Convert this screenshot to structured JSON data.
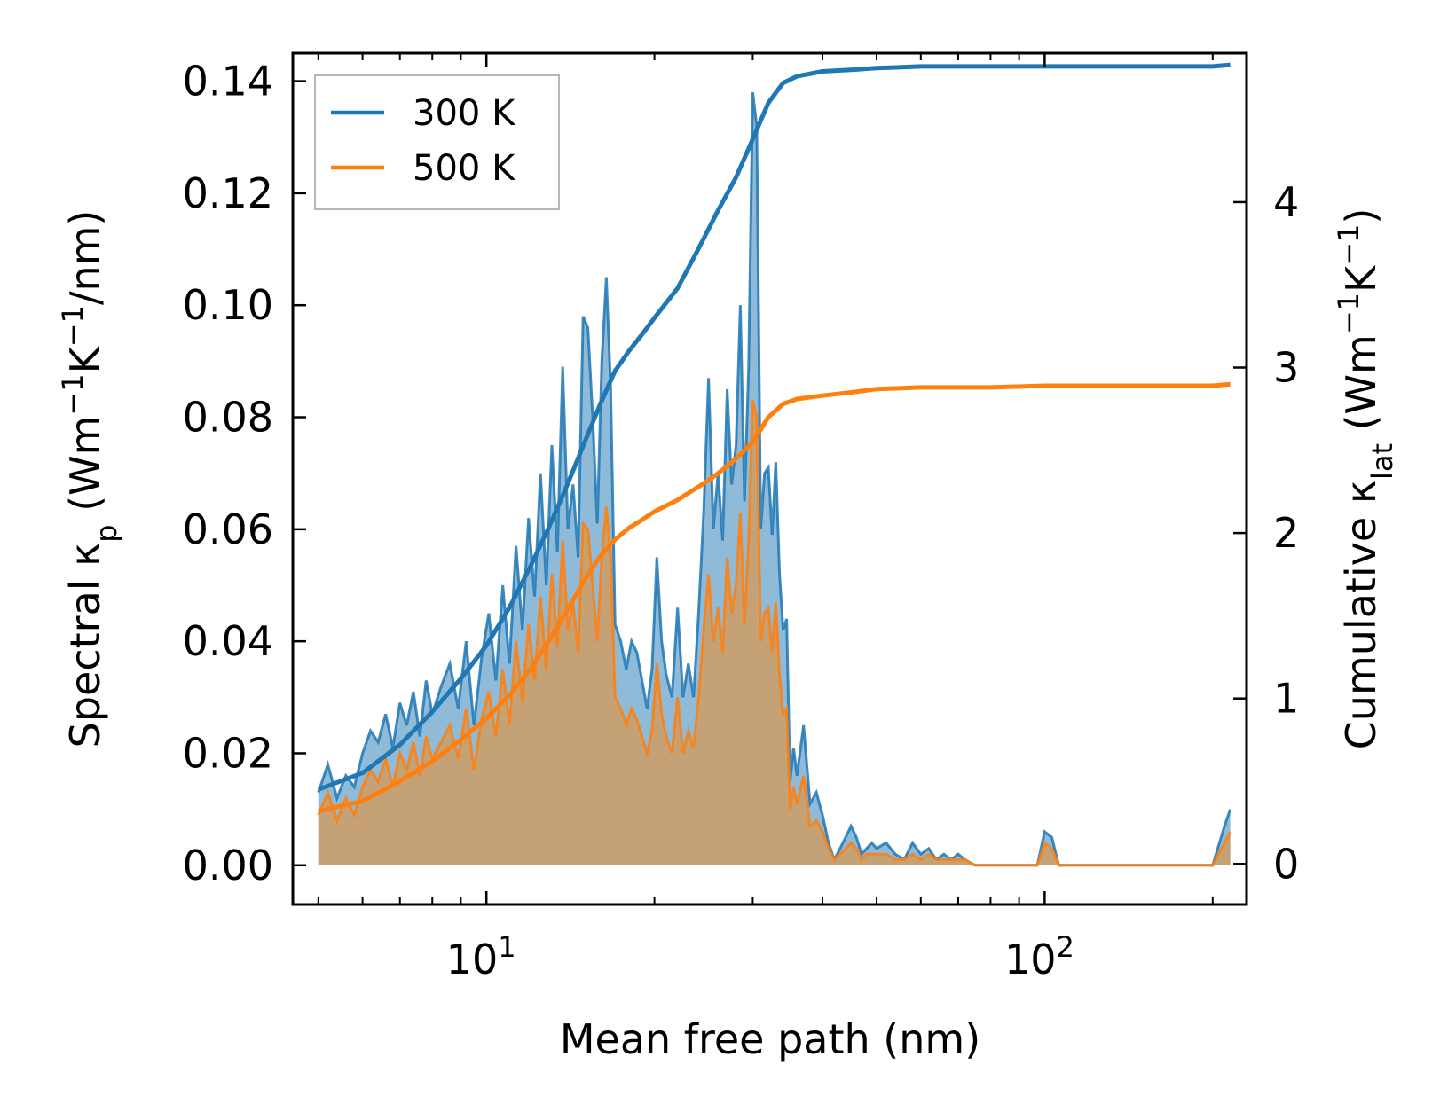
{
  "chart_data": {
    "type": "line",
    "xscale": "log",
    "xlabel": "Mean free path (nm)",
    "ylabel_left": {
      "prefix": "Spectral κ",
      "sub": "p",
      "unit_open": " (Wm",
      "sup1": "−1",
      "mid": "K",
      "sup2": "−1",
      "unit_close": "/nm)"
    },
    "ylabel_right": {
      "prefix": "Cumulative κ",
      "sub": "lat",
      "unit_open": " (Wm",
      "sup1": "−1",
      "mid": "K",
      "sup2": "−1",
      "unit_close": ")"
    },
    "xlim": [
      4.5,
      230
    ],
    "ylim_left": [
      -0.007,
      0.145
    ],
    "ylim_right": [
      -0.245,
      4.9
    ],
    "x_ticks": [
      {
        "value": 10,
        "base": "10",
        "exp": "1"
      },
      {
        "value": 100,
        "base": "10",
        "exp": "2"
      }
    ],
    "y_left_ticks": [
      {
        "value": 0.0,
        "label": "0.00"
      },
      {
        "value": 0.02,
        "label": "0.02"
      },
      {
        "value": 0.04,
        "label": "0.04"
      },
      {
        "value": 0.06,
        "label": "0.06"
      },
      {
        "value": 0.08,
        "label": "0.08"
      },
      {
        "value": 0.1,
        "label": "0.10"
      },
      {
        "value": 0.12,
        "label": "0.12"
      },
      {
        "value": 0.14,
        "label": "0.14"
      }
    ],
    "y_right_ticks": [
      {
        "value": 0,
        "label": "0"
      },
      {
        "value": 1,
        "label": "1"
      },
      {
        "value": 2,
        "label": "2"
      },
      {
        "value": 3,
        "label": "3"
      },
      {
        "value": 4,
        "label": "4"
      }
    ],
    "legend_position": "top-left",
    "series": [
      {
        "name": "300 K",
        "color": "#1f77b4",
        "axis": "right",
        "kind": "cumulative",
        "x": [
          5,
          6,
          7,
          8,
          9,
          10,
          11,
          12,
          13,
          14,
          15,
          16,
          17,
          18,
          19,
          20,
          22,
          24,
          26,
          28,
          30,
          32,
          34,
          36,
          40,
          45,
          50,
          60,
          70,
          80,
          100,
          150,
          200,
          215
        ],
        "values": [
          0.45,
          0.55,
          0.72,
          0.92,
          1.12,
          1.32,
          1.55,
          1.8,
          2.05,
          2.3,
          2.55,
          2.78,
          2.98,
          3.1,
          3.2,
          3.3,
          3.48,
          3.72,
          3.95,
          4.15,
          4.38,
          4.6,
          4.72,
          4.76,
          4.79,
          4.8,
          4.81,
          4.82,
          4.82,
          4.82,
          4.82,
          4.82,
          4.82,
          4.83
        ]
      },
      {
        "name": "500 K",
        "color": "#ff7f0e",
        "axis": "right",
        "kind": "cumulative",
        "x": [
          5,
          6,
          7,
          8,
          9,
          10,
          11,
          12,
          13,
          14,
          15,
          16,
          17,
          18,
          19,
          20,
          22,
          24,
          26,
          28,
          30,
          32,
          34,
          36,
          40,
          45,
          50,
          60,
          70,
          80,
          100,
          150,
          200,
          215
        ],
        "values": [
          0.32,
          0.38,
          0.5,
          0.62,
          0.75,
          0.88,
          1.02,
          1.18,
          1.36,
          1.54,
          1.72,
          1.86,
          1.96,
          2.03,
          2.08,
          2.13,
          2.2,
          2.28,
          2.36,
          2.45,
          2.55,
          2.7,
          2.78,
          2.81,
          2.83,
          2.85,
          2.87,
          2.88,
          2.88,
          2.88,
          2.89,
          2.89,
          2.89,
          2.9
        ]
      },
      {
        "name": "300 K spectral",
        "color": "#1f77b4",
        "axis": "left",
        "kind": "spectral",
        "x": [
          5,
          5.2,
          5.4,
          5.6,
          5.8,
          6.0,
          6.2,
          6.4,
          6.6,
          6.8,
          7.0,
          7.2,
          7.4,
          7.6,
          7.8,
          8.0,
          8.3,
          8.6,
          8.9,
          9.2,
          9.5,
          9.8,
          10.1,
          10.4,
          10.7,
          11.0,
          11.3,
          11.6,
          11.9,
          12.2,
          12.5,
          12.8,
          13.1,
          13.4,
          13.7,
          14.0,
          14.3,
          14.6,
          14.9,
          15.2,
          15.5,
          15.8,
          16.1,
          16.4,
          16.7,
          17.0,
          17.4,
          17.8,
          18.2,
          18.6,
          19.0,
          19.4,
          19.8,
          20.2,
          20.6,
          21.0,
          21.5,
          22.0,
          22.5,
          23.0,
          23.5,
          24.0,
          24.5,
          25.0,
          25.5,
          26.0,
          26.5,
          27.0,
          27.5,
          28.0,
          28.5,
          29.0,
          29.5,
          30.0,
          30.5,
          31.0,
          31.5,
          32.0,
          32.5,
          33.0,
          33.5,
          34.0,
          34.5,
          35.0,
          35.5,
          36.0,
          37.0,
          38.0,
          39.0,
          40.0,
          41.0,
          42.0,
          43.0,
          44.0,
          45.0,
          46.0,
          47.0,
          48.0,
          49.0,
          50.0,
          52.0,
          54.0,
          56.0,
          58.0,
          60.0,
          62.0,
          64.0,
          66.0,
          68.0,
          70.0,
          72.0,
          75.0,
          80.0,
          90.0,
          97.0,
          100.0,
          103.0,
          106.0,
          110.0,
          150.0,
          200.0,
          210.0,
          215.0
        ],
        "values": [
          0.013,
          0.018,
          0.012,
          0.016,
          0.014,
          0.02,
          0.024,
          0.022,
          0.027,
          0.021,
          0.029,
          0.025,
          0.031,
          0.023,
          0.033,
          0.027,
          0.032,
          0.036,
          0.028,
          0.04,
          0.025,
          0.037,
          0.045,
          0.033,
          0.05,
          0.036,
          0.057,
          0.042,
          0.062,
          0.048,
          0.07,
          0.05,
          0.075,
          0.056,
          0.089,
          0.06,
          0.068,
          0.055,
          0.098,
          0.096,
          0.08,
          0.061,
          0.09,
          0.105,
          0.085,
          0.043,
          0.04,
          0.035,
          0.04,
          0.038,
          0.033,
          0.028,
          0.035,
          0.055,
          0.04,
          0.034,
          0.03,
          0.046,
          0.03,
          0.036,
          0.03,
          0.045,
          0.063,
          0.087,
          0.06,
          0.07,
          0.058,
          0.085,
          0.068,
          0.075,
          0.1,
          0.065,
          0.089,
          0.138,
          0.132,
          0.06,
          0.07,
          0.071,
          0.059,
          0.072,
          0.052,
          0.042,
          0.044,
          0.015,
          0.021,
          0.016,
          0.025,
          0.011,
          0.013,
          0.009,
          0.004,
          0.001,
          0.003,
          0.005,
          0.007,
          0.005,
          0.002,
          0.003,
          0.004,
          0.003,
          0.004,
          0.002,
          0.001,
          0.004,
          0.002,
          0.003,
          0.001,
          0.002,
          0.001,
          0.002,
          0.001,
          0.0,
          0.0,
          0.0,
          0.0,
          0.006,
          0.005,
          0.0,
          0.0,
          0.0,
          0.0,
          0.007,
          0.01
        ]
      },
      {
        "name": "500 K spectral",
        "color": "#ff7f0e",
        "axis": "left",
        "kind": "spectral",
        "x": [
          5,
          5.2,
          5.4,
          5.6,
          5.8,
          6.0,
          6.2,
          6.4,
          6.6,
          6.8,
          7.0,
          7.2,
          7.4,
          7.6,
          7.8,
          8.0,
          8.3,
          8.6,
          8.9,
          9.2,
          9.5,
          9.8,
          10.1,
          10.4,
          10.7,
          11.0,
          11.3,
          11.6,
          11.9,
          12.2,
          12.5,
          12.8,
          13.1,
          13.4,
          13.7,
          14.0,
          14.3,
          14.6,
          14.9,
          15.2,
          15.5,
          15.8,
          16.1,
          16.4,
          16.7,
          17.0,
          17.4,
          17.8,
          18.2,
          18.6,
          19.0,
          19.4,
          19.8,
          20.2,
          20.6,
          21.0,
          21.5,
          22.0,
          22.5,
          23.0,
          23.5,
          24.0,
          24.5,
          25.0,
          25.5,
          26.0,
          26.5,
          27.0,
          27.5,
          28.0,
          28.5,
          29.0,
          29.5,
          30.0,
          30.5,
          31.0,
          31.5,
          32.0,
          32.5,
          33.0,
          33.5,
          34.0,
          34.5,
          35.0,
          35.5,
          36.0,
          37.0,
          38.0,
          39.0,
          40.0,
          41.0,
          42.0,
          43.0,
          44.0,
          45.0,
          46.0,
          47.0,
          48.0,
          49.0,
          50.0,
          52.0,
          54.0,
          56.0,
          58.0,
          60.0,
          62.0,
          64.0,
          66.0,
          68.0,
          70.0,
          72.0,
          75.0,
          80.0,
          90.0,
          97.0,
          100.0,
          103.0,
          106.0,
          110.0,
          150.0,
          200.0,
          210.0,
          215.0
        ],
        "values": [
          0.009,
          0.013,
          0.008,
          0.012,
          0.009,
          0.014,
          0.017,
          0.015,
          0.019,
          0.014,
          0.02,
          0.017,
          0.022,
          0.016,
          0.023,
          0.019,
          0.022,
          0.025,
          0.019,
          0.028,
          0.017,
          0.026,
          0.031,
          0.023,
          0.035,
          0.025,
          0.04,
          0.029,
          0.043,
          0.033,
          0.048,
          0.035,
          0.052,
          0.039,
          0.058,
          0.042,
          0.047,
          0.038,
          0.061,
          0.06,
          0.05,
          0.04,
          0.055,
          0.064,
          0.055,
          0.03,
          0.028,
          0.025,
          0.028,
          0.026,
          0.023,
          0.02,
          0.024,
          0.036,
          0.027,
          0.023,
          0.02,
          0.03,
          0.02,
          0.024,
          0.021,
          0.03,
          0.042,
          0.052,
          0.04,
          0.046,
          0.038,
          0.055,
          0.045,
          0.05,
          0.063,
          0.043,
          0.058,
          0.083,
          0.08,
          0.04,
          0.045,
          0.046,
          0.038,
          0.047,
          0.034,
          0.027,
          0.028,
          0.01,
          0.014,
          0.011,
          0.016,
          0.007,
          0.008,
          0.006,
          0.003,
          0.001,
          0.002,
          0.003,
          0.004,
          0.003,
          0.001,
          0.002,
          0.002,
          0.002,
          0.002,
          0.001,
          0.001,
          0.002,
          0.001,
          0.002,
          0.001,
          0.001,
          0.001,
          0.001,
          0.001,
          0.0,
          0.0,
          0.0,
          0.0,
          0.004,
          0.003,
          0.0,
          0.0,
          0.0,
          0.0,
          0.004,
          0.006
        ]
      }
    ]
  }
}
